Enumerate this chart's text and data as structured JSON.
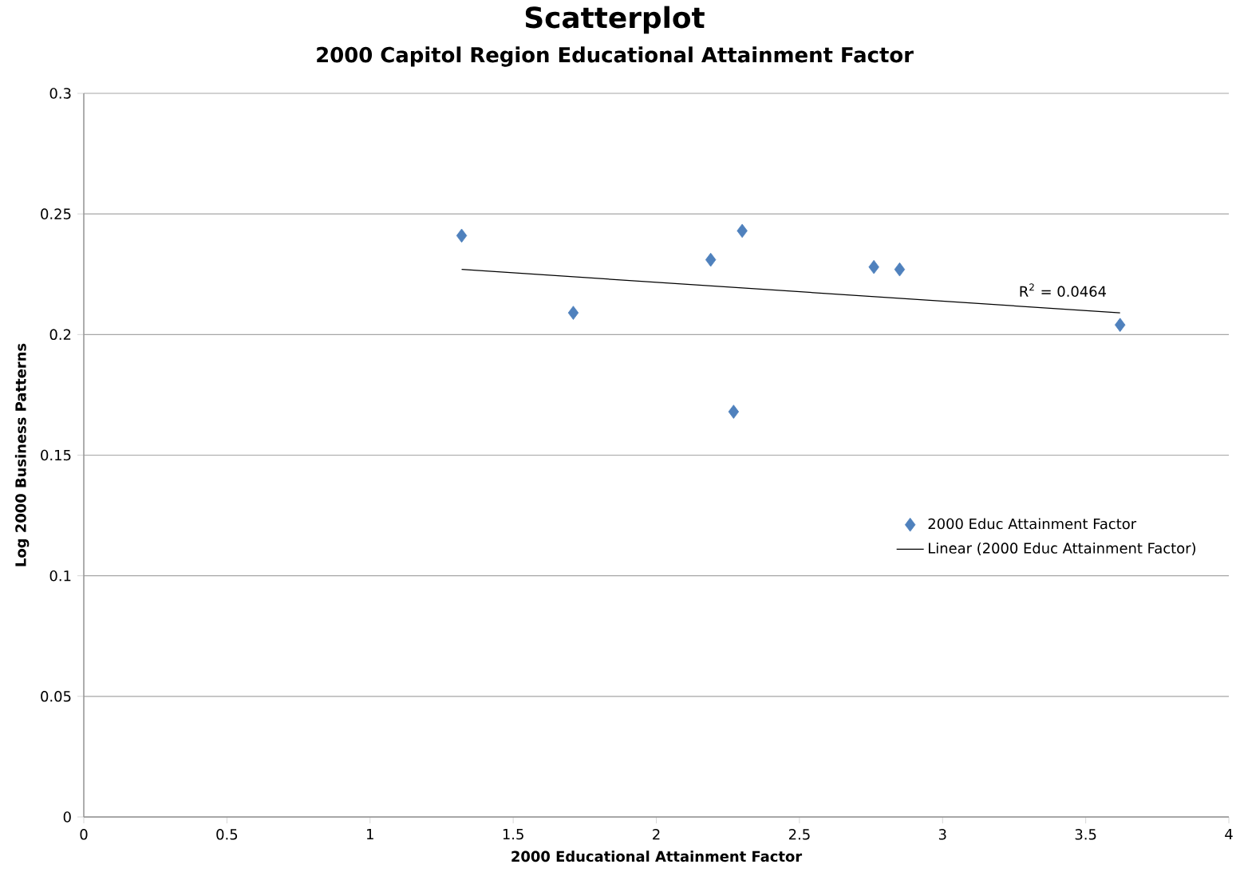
{
  "chart_data": {
    "type": "scatter",
    "title": "Scatterplot",
    "subtitle": "2000 Capitol Region Educational Attainment Factor",
    "xlabel": "2000 Educational Attainment Factor",
    "ylabel": "Log 2000 Business Patterns",
    "xlim": [
      0,
      4
    ],
    "xticks": [
      0,
      0.5,
      1,
      1.5,
      2,
      2.5,
      3,
      3.5,
      4
    ],
    "ylim": [
      0,
      0.3
    ],
    "yticks": [
      0,
      0.05,
      0.1,
      0.15,
      0.2,
      0.25,
      0.3
    ],
    "grid": "y",
    "legend": "right",
    "series": [
      {
        "name": "2000 Educ Attainment Factor",
        "marker": "diamond",
        "color": "#4f81bd",
        "x": [
          1.32,
          1.71,
          2.19,
          2.27,
          2.3,
          2.76,
          2.85,
          3.62
        ],
        "values": [
          0.241,
          0.209,
          0.231,
          0.168,
          0.243,
          0.228,
          0.227,
          0.204
        ]
      },
      {
        "name": "Linear (2000 Educ Attainment Factor)",
        "type": "line",
        "color": "#000000",
        "x": [
          1.32,
          3.62
        ],
        "values": [
          0.227,
          0.209
        ]
      }
    ],
    "annotations": [
      "R$^{2}$ = 0.0464"
    ]
  }
}
